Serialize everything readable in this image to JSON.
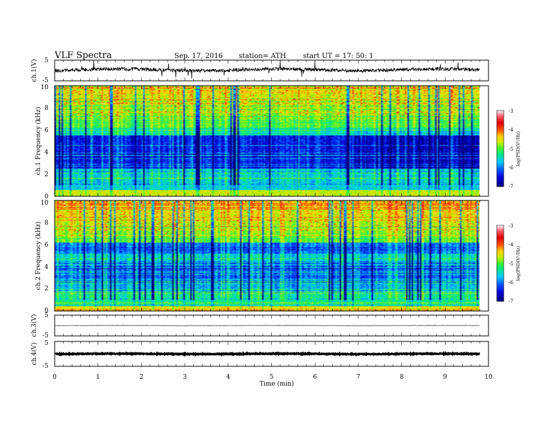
{
  "header": {
    "title": "VLF  Spectra",
    "date": "Sep. 17, 2016",
    "station": "station= ATH",
    "start": "start  UT  =    17: 50: 1"
  },
  "colors": {
    "trace": "#000000",
    "spectrogram_scale": [
      "#00007a",
      "#0000d8",
      "#0055ff",
      "#00c8ff",
      "#00e890",
      "#40f030",
      "#c8f000",
      "#ffd000",
      "#ff5500",
      "#e00000",
      "#ff6070",
      "#ffffff"
    ]
  },
  "chart_data": [
    {
      "type": "line",
      "name": "ch1-waveform",
      "ylabel": "ch.1(V)",
      "ylim": [
        -5,
        5
      ],
      "yticks": [
        "5",
        "-5"
      ],
      "xlim": [
        0,
        10
      ]
    },
    {
      "type": "heatmap",
      "name": "ch1-spectrogram",
      "ylabel": "ch.1  Frequency  (kHz)",
      "ylim": [
        0,
        10
      ],
      "yticks": [
        "0",
        "2",
        "4",
        "6",
        "8",
        "10"
      ],
      "xlim": [
        0,
        10
      ],
      "colorbar": {
        "label": "log(PSD(V²/Hz)",
        "range": [
          -7,
          -3
        ],
        "ticks": [
          "-3",
          "-4",
          "-5",
          "-6",
          "-7"
        ]
      }
    },
    {
      "type": "heatmap",
      "name": "ch2-spectrogram",
      "ylabel": "ch.2  Frequency  (kHz)",
      "ylim": [
        0,
        10
      ],
      "yticks": [
        "0",
        "2",
        "4",
        "6",
        "8",
        "10"
      ],
      "xlim": [
        0,
        10
      ],
      "colorbar": {
        "label": "log(PSD(V²/Hz)",
        "range": [
          -7,
          -3
        ],
        "ticks": [
          "-3",
          "-4",
          "-5",
          "-6",
          "-7"
        ]
      }
    },
    {
      "type": "line",
      "name": "ch3-waveform",
      "ylabel": "ch.3(V)",
      "ylim": [
        -5,
        5
      ],
      "yticks": [
        "5",
        "-5"
      ],
      "xlim": [
        0,
        10
      ]
    },
    {
      "type": "line",
      "name": "ch4-waveform",
      "ylabel": "ch.4(V)",
      "ylim": [
        -5,
        5
      ],
      "yticks": [
        "5",
        "-5"
      ],
      "xlim": [
        0,
        10
      ],
      "xlabel": "Time  (min)",
      "xticks": [
        "0",
        "1",
        "2",
        "3",
        "4",
        "5",
        "6",
        "7",
        "8",
        "9",
        "10"
      ]
    }
  ]
}
